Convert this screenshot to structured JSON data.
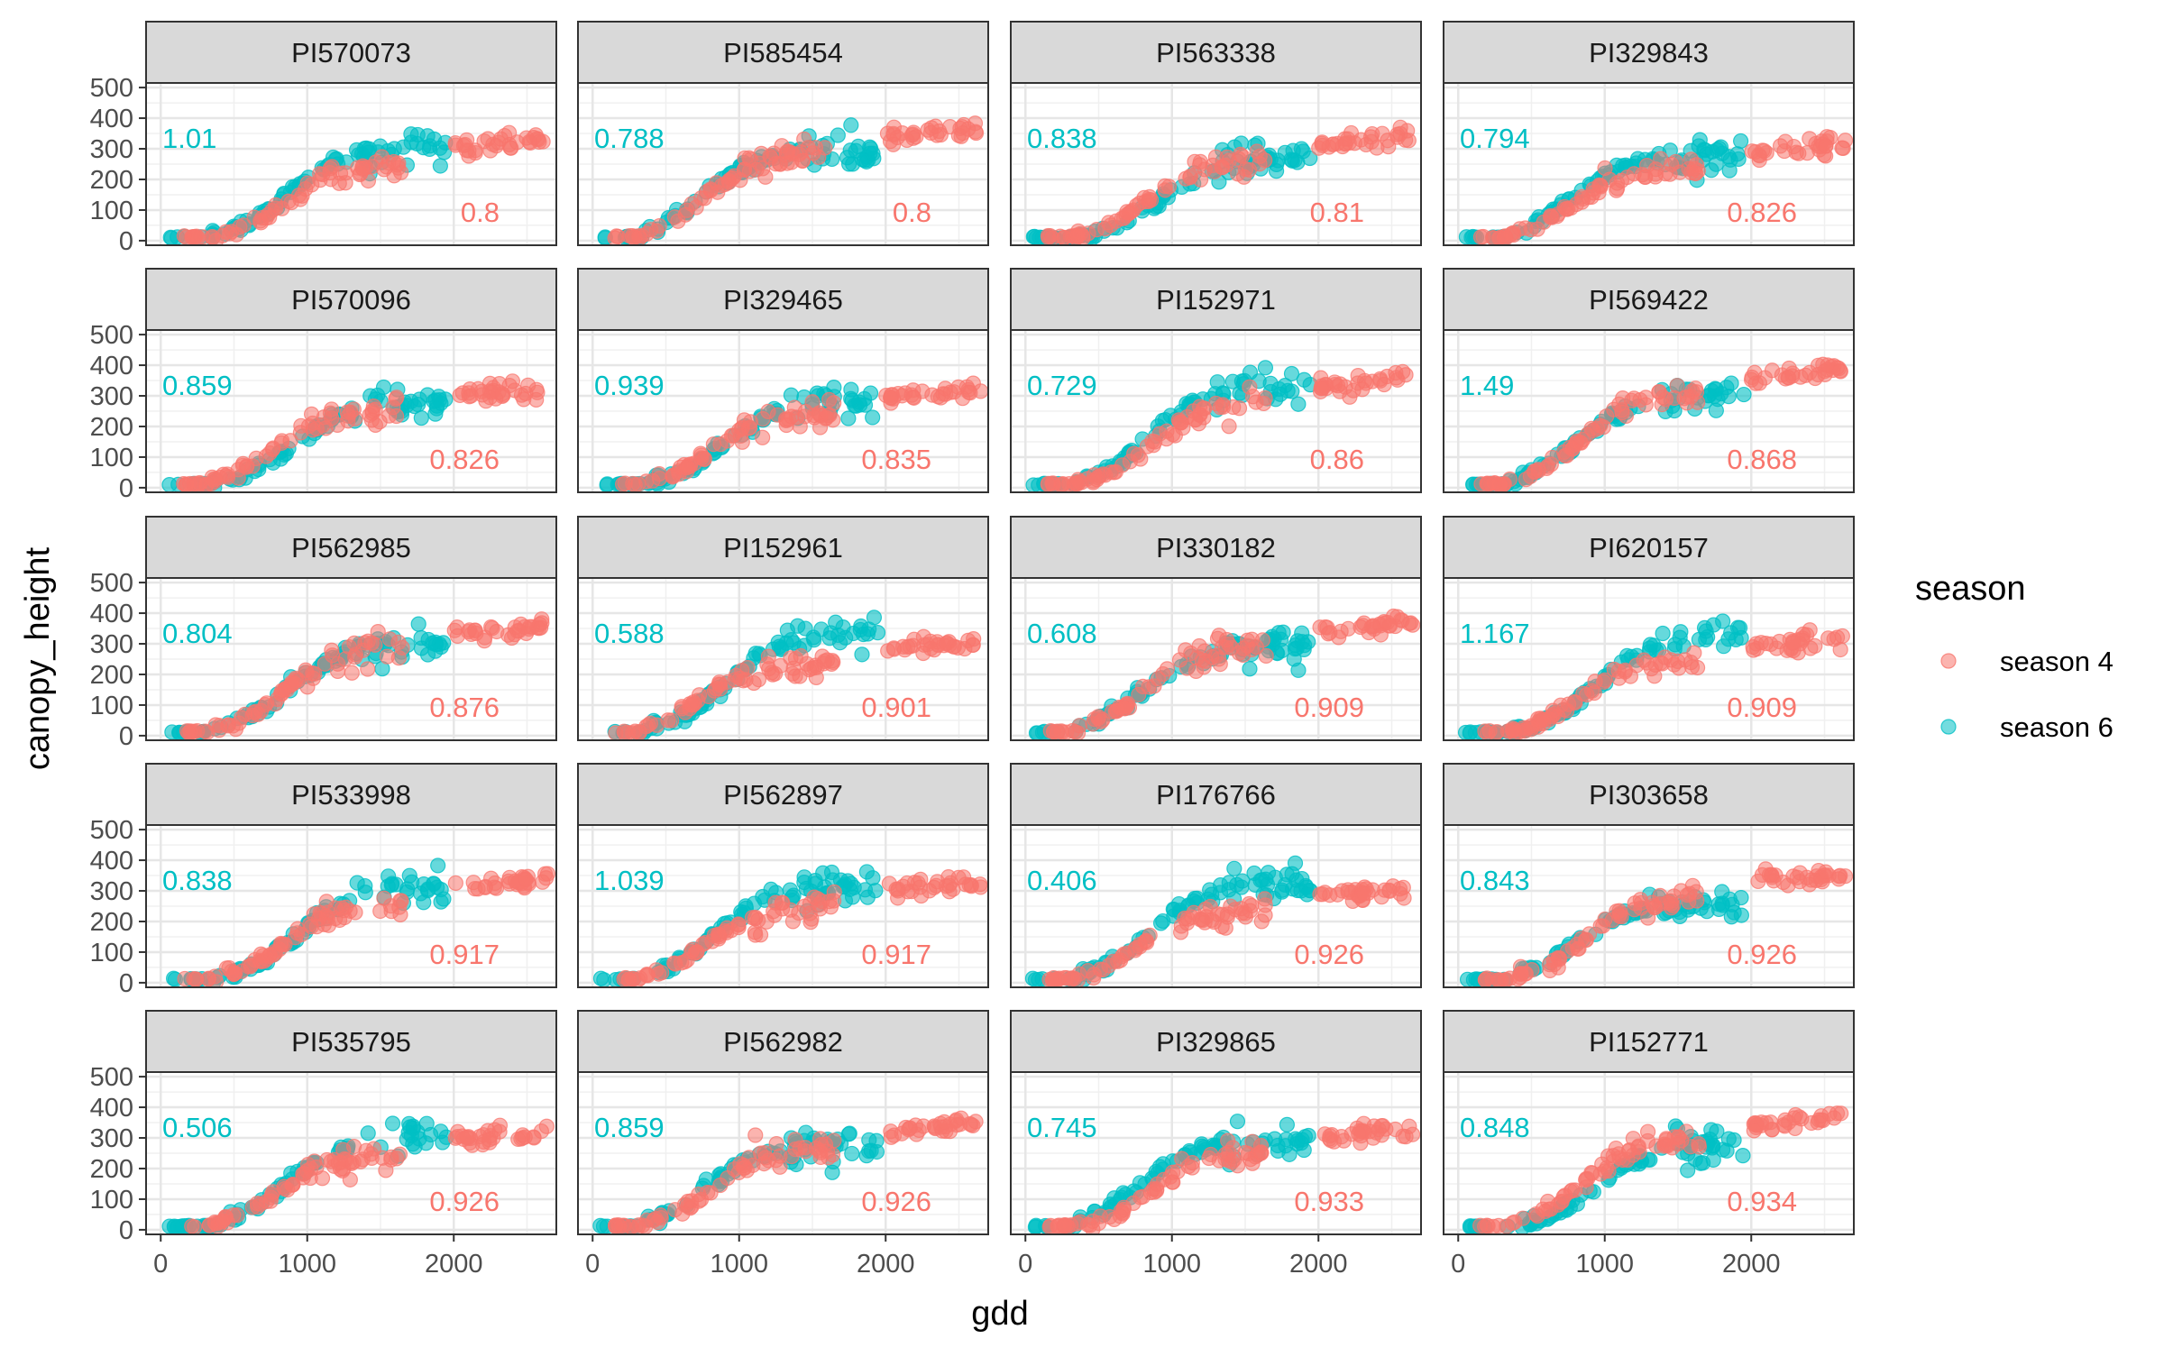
{
  "chart_data": {
    "type": "scatter",
    "layout": "facet-grid",
    "xlabel": "gdd",
    "ylabel": "canopy_height",
    "xlim": [
      -100,
      2700
    ],
    "ylim": [
      -15,
      515
    ],
    "x_ticks": [
      0,
      1000,
      2000
    ],
    "y_ticks": [
      0,
      100,
      200,
      300,
      400,
      500
    ],
    "grid": true,
    "legend": {
      "title": "season",
      "position": "right",
      "entries": [
        {
          "name": "season 4",
          "color": "#F8766D"
        },
        {
          "name": "season 6",
          "color": "#00BFC4"
        }
      ]
    },
    "series_colors": {
      "season 4": "#F8766D",
      "season 6": "#00BFC4"
    },
    "annotation_positions": {
      "season 6": "top-left",
      "season 4": "bottom-right"
    },
    "facets": [
      {
        "label": "PI570073",
        "season6_value": "1.01",
        "season4_value": "0.8"
      },
      {
        "label": "PI585454",
        "season6_value": "0.788",
        "season4_value": "0.8"
      },
      {
        "label": "PI563338",
        "season6_value": "0.838",
        "season4_value": "0.81"
      },
      {
        "label": "PI329843",
        "season6_value": "0.794",
        "season4_value": "0.826"
      },
      {
        "label": "PI570096",
        "season6_value": "0.859",
        "season4_value": "0.826"
      },
      {
        "label": "PI329465",
        "season6_value": "0.939",
        "season4_value": "0.835"
      },
      {
        "label": "PI152971",
        "season6_value": "0.729",
        "season4_value": "0.86"
      },
      {
        "label": "PI569422",
        "season6_value": "1.49",
        "season4_value": "0.868"
      },
      {
        "label": "PI562985",
        "season6_value": "0.804",
        "season4_value": "0.876"
      },
      {
        "label": "PI152961",
        "season6_value": "0.588",
        "season4_value": "0.901"
      },
      {
        "label": "PI330182",
        "season6_value": "0.608",
        "season4_value": "0.909"
      },
      {
        "label": "PI620157",
        "season6_value": "1.167",
        "season4_value": "0.909"
      },
      {
        "label": "PI533998",
        "season6_value": "0.838",
        "season4_value": "0.917"
      },
      {
        "label": "PI562897",
        "season6_value": "1.039",
        "season4_value": "0.917"
      },
      {
        "label": "PI176766",
        "season6_value": "0.406",
        "season4_value": "0.926"
      },
      {
        "label": "PI303658",
        "season6_value": "0.843",
        "season4_value": "0.926"
      },
      {
        "label": "PI535795",
        "season6_value": "0.506",
        "season4_value": "0.926"
      },
      {
        "label": "PI562982",
        "season6_value": "0.859",
        "season4_value": "0.926"
      },
      {
        "label": "PI329865",
        "season6_value": "0.745",
        "season4_value": "0.933"
      },
      {
        "label": "PI152771",
        "season6_value": "0.848",
        "season4_value": "0.934"
      }
    ],
    "curve_model": {
      "form": "logistic",
      "season4": {
        "x_range": [
          150,
          2650
        ],
        "midpoint": 800,
        "rate": 0.0055,
        "plateau_range": [
          300,
          380
        ],
        "late_gdd": [
          2000,
          2650
        ]
      },
      "season6": {
        "x_range": [
          50,
          1950
        ],
        "midpoint": 850,
        "rate": 0.0052,
        "plateau_range": [
          250,
          340
        ]
      }
    }
  }
}
